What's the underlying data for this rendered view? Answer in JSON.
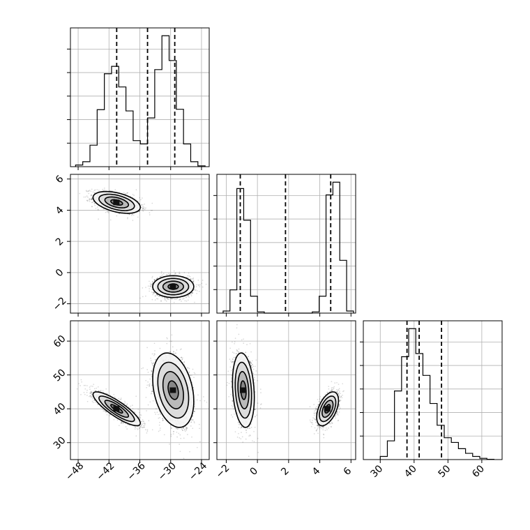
{
  "chart_data": {
    "type": "corner",
    "grid": true,
    "parameters": [
      {
        "range": [
          -49.5,
          -22.5
        ],
        "ticks": [
          -48,
          -42,
          -36,
          -30,
          -24
        ],
        "tick_labels": [
          "−48",
          "−42",
          "−36",
          "−30",
          "−24"
        ],
        "histogram": {
          "bin_edges": [
            -48.5,
            -47.1,
            -45.7,
            -44.3,
            -42.9,
            -41.5,
            -40.1,
            -38.7,
            -37.3,
            -35.9,
            -34.5,
            -33.1,
            -31.7,
            -30.3,
            -28.9,
            -27.5,
            -26.1,
            -24.7,
            -23.3
          ],
          "counts": [
            0.04,
            0.12,
            0.52,
            1.38,
            2.25,
            2.43,
            1.93,
            1.35,
            0.63,
            0.55,
            1.18,
            2.35,
            3.17,
            2.57,
            1.39,
            0.55,
            0.12,
            0.02
          ]
        },
        "quantiles": [
          -40.5,
          -34.5,
          -29.2
        ]
      },
      {
        "range": [
          -2.6,
          6.3
        ],
        "ticks": [
          -2,
          0,
          2,
          4,
          6
        ],
        "tick_labels": [
          "−2",
          "0",
          "2",
          "4",
          "6"
        ],
        "histogram": {
          "bin_edges": [
            -2.2,
            -1.76,
            -1.32,
            -0.88,
            -0.44,
            0.0,
            0.44,
            0.88,
            1.32,
            1.76,
            2.2,
            2.64,
            3.08,
            3.52,
            3.96,
            4.4,
            4.84,
            5.28,
            5.72,
            6.16
          ],
          "counts": [
            0.05,
            0.55,
            2.95,
            2.2,
            0.4,
            0.03,
            0.0,
            0.0,
            0.0,
            0.0,
            0.0,
            0.0,
            0.0,
            0.03,
            0.4,
            2.8,
            3.1,
            1.25,
            0.05
          ]
        },
        "quantiles": [
          -1.1,
          1.8,
          4.7
        ]
      },
      {
        "range": [
          25.0,
          66.0
        ],
        "ticks": [
          30,
          40,
          50,
          60
        ],
        "tick_labels": [
          "30",
          "40",
          "50",
          "60"
        ],
        "histogram": {
          "bin_edges": [
            30.0,
            32.1,
            34.2,
            36.3,
            38.4,
            40.5,
            42.6,
            44.7,
            46.8,
            48.9,
            51.0,
            53.1,
            55.2,
            57.3,
            59.4,
            61.5,
            63.6
          ],
          "counts": [
            0.1,
            0.6,
            2.2,
            3.3,
            4.2,
            3.4,
            2.7,
            1.8,
            1.1,
            0.7,
            0.55,
            0.35,
            0.2,
            0.1,
            0.04,
            0.01
          ]
        },
        "quantiles": [
          37.9,
          41.5,
          48.1
        ]
      }
    ],
    "modes": [
      {
        "weight": 0.5,
        "mean": [
          -40.5,
          4.5,
          40.0
        ],
        "sd": [
          2.3,
          0.35,
          2.5
        ],
        "corr": [
          [
            1,
            -0.45,
            -0.85
          ],
          [
            -0.45,
            1,
            0.5
          ],
          [
            -0.85,
            0.5,
            1
          ]
        ]
      },
      {
        "weight": 0.5,
        "mean": [
          -29.5,
          -0.9,
          45.5
        ],
        "sd": [
          2.0,
          0.35,
          5.5
        ],
        "corr": [
          [
            1,
            0.0,
            -0.3
          ],
          [
            0.0,
            1,
            -0.2
          ],
          [
            -0.3,
            -0.2,
            1
          ]
        ]
      }
    ],
    "contour_levels_sigma": [
      0.5,
      1.0,
      1.5,
      2.0
    ]
  }
}
